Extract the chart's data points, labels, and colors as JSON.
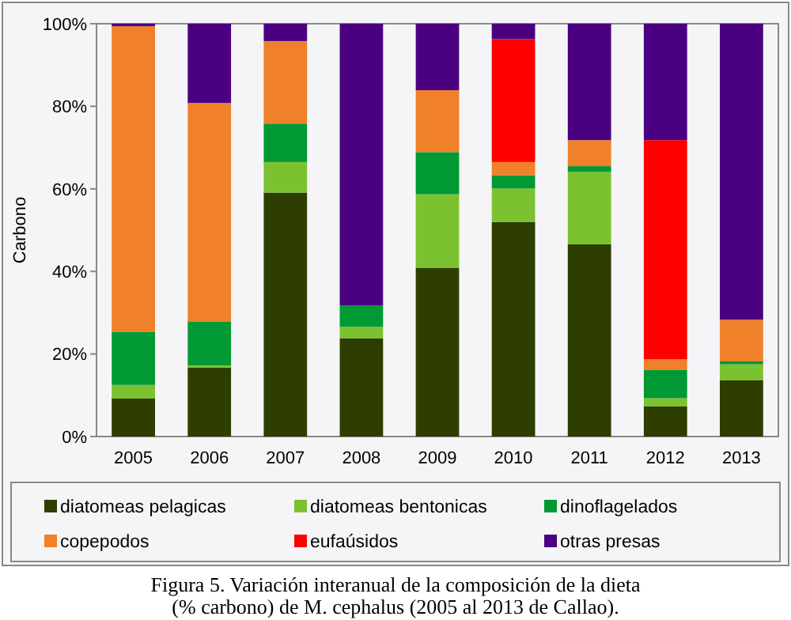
{
  "chart_data": {
    "type": "bar",
    "stacked": true,
    "ylabel": "Carbono",
    "categories": [
      "2005",
      "2006",
      "2007",
      "2008",
      "2009",
      "2010",
      "2011",
      "2012",
      "2013"
    ],
    "series": [
      {
        "name": "diatomeas pelagicas",
        "color": "#2d3e00",
        "values": [
          9.2,
          16.7,
          59.1,
          23.8,
          40.9,
          52,
          46.6,
          7.3,
          13.6
        ]
      },
      {
        "name": "diatomeas bentonicas",
        "color": "#7cc230",
        "values": [
          3.3,
          0.5,
          7.4,
          2.8,
          17.8,
          8.1,
          17.5,
          2,
          3.9
        ]
      },
      {
        "name": "dinoflagelados",
        "color": "#009933",
        "values": [
          12.9,
          10.7,
          9.3,
          5.1,
          10.2,
          3.2,
          1.4,
          6.9,
          0.7
        ]
      },
      {
        "name": "copepodos",
        "color": "#f0802a",
        "values": [
          74,
          52.9,
          20,
          0,
          15,
          3.2,
          6.3,
          2.5,
          10.1
        ]
      },
      {
        "name": "eufaúsidos",
        "color": "#ff0000",
        "values": [
          0,
          0,
          0,
          0,
          0,
          29.8,
          0,
          53.1,
          0
        ]
      },
      {
        "name": "otras presas",
        "color": "#4b0082",
        "values": [
          0.6,
          19.2,
          4.2,
          68.3,
          16.1,
          3.7,
          28.2,
          28.2,
          71.7
        ]
      }
    ],
    "ylim": [
      0,
      100
    ],
    "yticks": [
      {
        "value": 0,
        "label": "0%"
      },
      {
        "value": 20,
        "label": "20%"
      },
      {
        "value": 40,
        "label": "40%"
      },
      {
        "value": 60,
        "label": "60%"
      },
      {
        "value": 80,
        "label": "80%"
      },
      {
        "value": 100,
        "label": "100%"
      }
    ],
    "grid": false,
    "legend": "bottom",
    "annotations": [
      "Figura 5.  Variación interanual de la composición de la dieta",
      "(% carbono) de M. cephalus (2005 al 2013 de Callao)."
    ]
  }
}
